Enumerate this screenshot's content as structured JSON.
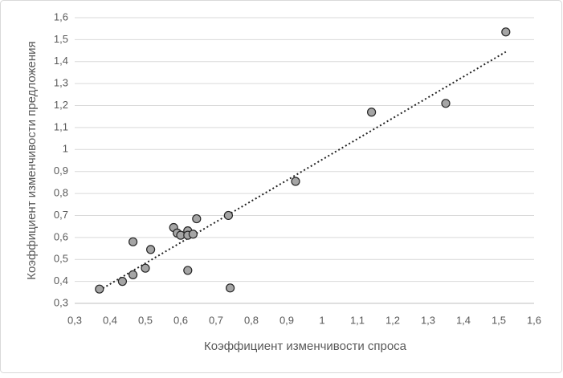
{
  "chart_data": {
    "type": "scatter",
    "xlabel": "Коэффициент изменчивости спроса",
    "ylabel": "Коэффициент изменчивости предложения",
    "x": [
      0.37,
      0.435,
      0.465,
      0.465,
      0.5,
      0.515,
      0.58,
      0.59,
      0.6,
      0.62,
      0.62,
      0.635,
      0.645,
      0.62,
      0.735,
      0.74,
      0.925,
      1.14,
      1.35,
      1.52
    ],
    "values": [
      0.365,
      0.4,
      0.43,
      0.58,
      0.46,
      0.545,
      0.645,
      0.62,
      0.61,
      0.63,
      0.61,
      0.615,
      0.685,
      0.45,
      0.7,
      0.37,
      0.855,
      1.17,
      1.21,
      1.535
    ],
    "color": "#a5a5a5",
    "trendline": true,
    "grid": true,
    "xlim": [
      0.3,
      1.6
    ],
    "xticks": [
      {
        "value": 0.3,
        "label": "0,3"
      },
      {
        "value": 0.4,
        "label": "0,4"
      },
      {
        "value": 0.5,
        "label": "0,5"
      },
      {
        "value": 0.6,
        "label": "0,6"
      },
      {
        "value": 0.7,
        "label": "0,7"
      },
      {
        "value": 0.8,
        "label": "0,8"
      },
      {
        "value": 0.9,
        "label": "0,9"
      },
      1,
      {
        "value": 1.1,
        "label": "1,1"
      },
      {
        "value": 1.2,
        "label": "1,2"
      },
      {
        "value": 1.3,
        "label": "1,3"
      },
      {
        "value": 1.4,
        "label": "1,4"
      },
      {
        "value": 1.5,
        "label": "1,5"
      },
      {
        "value": 1.6,
        "label": "1,6"
      }
    ],
    "ylim": [
      0.3,
      1.6
    ],
    "yticks": [
      {
        "value": 0.3,
        "label": "0,3"
      },
      {
        "value": 0.4,
        "label": "0,4"
      },
      {
        "value": 0.5,
        "label": "0,5"
      },
      {
        "value": 0.6,
        "label": "0,6"
      },
      {
        "value": 0.7,
        "label": "0,7"
      },
      {
        "value": 0.8,
        "label": "0,8"
      },
      {
        "value": 0.9,
        "label": "0,9"
      },
      1,
      {
        "value": 1.1,
        "label": "1,1"
      },
      {
        "value": 1.2,
        "label": "1,2"
      },
      {
        "value": 1.3,
        "label": "1,3"
      },
      {
        "value": 1.4,
        "label": "1,4"
      },
      {
        "value": 1.5,
        "label": "1,5"
      },
      {
        "value": 1.6,
        "label": "1,6"
      }
    ]
  }
}
